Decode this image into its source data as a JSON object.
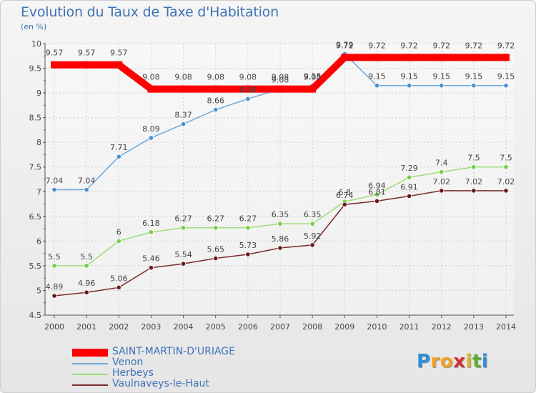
{
  "title": "Evolution du Taux de Taxe d'Habitation",
  "subtitle": "(en %)",
  "logo": {
    "text": "Proxiti",
    "letters": [
      {
        "ch": "P",
        "color": "#2e8ed6"
      },
      {
        "ch": "r",
        "color": "#f0a020"
      },
      {
        "ch": "o",
        "color": "#f0a020"
      },
      {
        "ch": "x",
        "color": "#d43030"
      },
      {
        "ch": "i",
        "color": "#e0b020"
      },
      {
        "ch": "t",
        "color": "#5ab02e"
      },
      {
        "ch": "i",
        "color": "#2e8ed6"
      }
    ]
  },
  "chart_data": {
    "type": "line",
    "title": "Evolution du Taux de Taxe d'Habitation",
    "subtitle": "(en %)",
    "x": [
      "2000",
      "2001",
      "2002",
      "2003",
      "2004",
      "2005",
      "2006",
      "2007",
      "2008",
      "2009",
      "2010",
      "2011",
      "2012",
      "2013",
      "2014"
    ],
    "ylim": [
      4.5,
      10
    ],
    "yticks": [
      "4.5",
      "5",
      "5.5",
      "6",
      "6.5",
      "7",
      "7.5",
      "8",
      "8.5",
      "9",
      "9.5",
      "10"
    ],
    "grid": true,
    "legend_position": "bottom-left",
    "series": [
      {
        "name": "SAINT-MARTIN-D'URIAGE",
        "color": "#ff0000",
        "thick": true,
        "values": [
          9.57,
          9.57,
          9.57,
          9.08,
          9.08,
          9.08,
          9.08,
          9.08,
          9.08,
          9.72,
          9.72,
          9.72,
          9.72,
          9.72,
          9.72
        ],
        "labels": [
          "9.57",
          "9.57",
          "9.57",
          "9.08",
          "9.08",
          "9.08",
          "9.08",
          "9.08",
          "9.08",
          "9.72",
          "9.72",
          "9.72",
          "9.72",
          "9.72",
          "9.72"
        ],
        "label_positions": [
          "above",
          "above",
          "above",
          "above",
          "above",
          "above",
          "above",
          "above",
          "above",
          "above",
          "above",
          "above",
          "above",
          "above",
          "above"
        ]
      },
      {
        "name": "Venon",
        "color": "#6fa8dc",
        "point_color": "#4a90d0",
        "thick": false,
        "values": [
          7.04,
          7.04,
          7.71,
          8.09,
          8.37,
          8.66,
          8.88,
          9.08,
          9.15,
          9.79,
          9.15,
          9.15,
          9.15,
          9.15,
          9.15
        ],
        "labels": [
          "7.04",
          "7.04",
          "7.71",
          "8.09",
          "8.37",
          "8.66",
          "8.88",
          "9.08",
          "9.15",
          "9.79",
          "9.15",
          "9.15",
          "9.15",
          "9.15",
          "9.15"
        ],
        "label_positions": [
          "above",
          "above",
          "above",
          "above",
          "above",
          "above",
          "above",
          "above",
          "above",
          "above",
          "above",
          "above",
          "above",
          "above",
          "above"
        ]
      },
      {
        "name": "Herbeys",
        "color": "#99dd77",
        "point_color": "#77cc44",
        "thick": false,
        "values": [
          5.5,
          5.5,
          6,
          6.18,
          6.27,
          6.27,
          6.27,
          6.35,
          6.35,
          6.8,
          6.94,
          7.29,
          7.4,
          7.5,
          7.5
        ],
        "labels": [
          "5.5",
          "5.5",
          "6",
          "6.18",
          "6.27",
          "6.27",
          "6.27",
          "6.35",
          "6.35",
          "6.8",
          "6.94",
          "7.29",
          "7.4",
          "7.5",
          "7.5"
        ],
        "label_positions": [
          "above",
          "above",
          "above",
          "above",
          "above",
          "above",
          "above",
          "above",
          "above",
          "above",
          "above",
          "above",
          "above",
          "above",
          "above"
        ]
      },
      {
        "name": "Vaulnaveys-le-Haut",
        "color": "#7a2a2a",
        "point_color": "#6a1a1a",
        "thick": false,
        "values": [
          4.89,
          4.96,
          5.06,
          5.46,
          5.54,
          5.65,
          5.73,
          5.86,
          5.92,
          6.74,
          6.81,
          6.91,
          7.02,
          7.02,
          7.02
        ],
        "labels": [
          "4.89",
          "4.96",
          "5.06",
          "5.46",
          "5.54",
          "5.65",
          "5.73",
          "5.86",
          "5.92",
          "6.74",
          "6.81",
          "6.91",
          "7.02",
          "7.02",
          "7.02"
        ],
        "label_positions": [
          "above",
          "above",
          "above",
          "above",
          "above",
          "above",
          "above",
          "above",
          "above",
          "above",
          "above",
          "above",
          "above",
          "above",
          "above"
        ]
      }
    ]
  }
}
